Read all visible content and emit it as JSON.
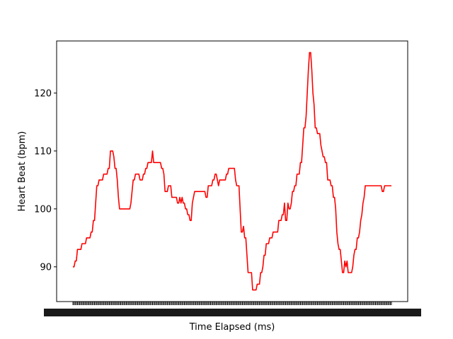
{
  "chart_data": {
    "type": "line",
    "title": "",
    "xlabel": "Time Elapsed (ms)",
    "ylabel": "Heart Beat (bpm)",
    "ylim": [
      84,
      129
    ],
    "yticks": [
      90,
      100,
      110,
      120
    ],
    "x_tick_labels_overlap": true,
    "grid": false,
    "legend": "none",
    "series": [
      {
        "color": "#ff0000",
        "values": [
          90,
          90,
          91,
          91,
          93,
          93,
          93,
          93,
          94,
          94,
          94,
          94,
          95,
          95,
          95,
          95,
          96,
          96,
          98,
          98,
          101,
          104,
          104,
          105,
          105,
          105,
          105,
          106,
          106,
          106,
          106,
          107,
          107,
          110,
          110,
          110,
          109,
          107,
          107,
          105,
          102,
          100,
          100,
          100,
          100,
          100,
          100,
          100,
          100,
          100,
          100,
          101,
          103,
          105,
          105,
          106,
          106,
          106,
          106,
          105,
          105,
          105,
          106,
          106,
          107,
          107,
          108,
          108,
          108,
          108,
          110,
          108,
          108,
          108,
          108,
          108,
          108,
          108,
          107,
          107,
          106,
          103,
          103,
          103,
          104,
          104,
          104,
          102,
          102,
          102,
          102,
          102,
          101,
          101,
          102,
          101,
          102,
          101,
          101,
          100,
          100,
          99,
          99,
          98,
          98,
          101,
          102,
          103,
          103,
          103,
          103,
          103,
          103,
          103,
          103,
          103,
          103,
          102,
          102,
          104,
          104,
          104,
          104,
          105,
          105,
          106,
          106,
          105,
          104,
          105,
          105,
          105,
          105,
          105,
          105,
          106,
          106,
          107,
          107,
          107,
          107,
          107,
          107,
          105,
          104,
          104,
          104,
          100,
          96,
          96,
          97,
          95,
          95,
          92,
          89,
          89,
          89,
          89,
          86,
          86,
          86,
          86,
          87,
          87,
          87,
          89,
          89,
          90,
          92,
          92,
          94,
          94,
          94,
          95,
          95,
          95,
          96,
          96,
          96,
          96,
          96,
          98,
          98,
          98,
          99,
          99,
          101,
          98,
          98,
          101,
          100,
          100,
          101,
          103,
          103,
          104,
          104,
          106,
          106,
          106,
          108,
          108,
          111,
          114,
          114,
          116,
          120,
          124,
          127,
          127,
          124,
          120,
          118,
          114,
          114,
          113,
          113,
          113,
          111,
          110,
          109,
          109,
          108,
          108,
          105,
          105,
          105,
          104,
          104,
          102,
          102,
          100,
          96,
          94,
          93,
          93,
          91,
          89,
          89,
          91,
          90,
          91,
          89,
          89,
          89,
          89,
          90,
          92,
          93,
          93,
          95,
          95,
          96,
          98,
          99,
          101,
          102,
          104,
          104,
          104,
          104,
          104,
          104,
          104,
          104,
          104,
          104,
          104,
          104,
          104,
          104,
          104,
          103,
          103,
          104,
          104,
          104,
          104,
          104,
          104,
          104
        ]
      }
    ]
  }
}
